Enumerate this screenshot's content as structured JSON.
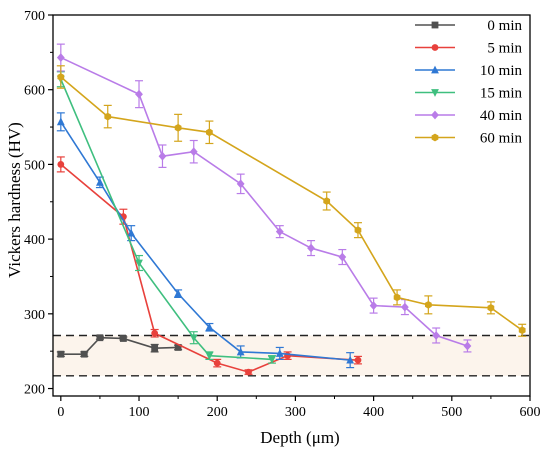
{
  "chart_data": {
    "type": "line",
    "xlabel": "Depth (μm)",
    "ylabel": "Vickers hardness (HV)",
    "xlim": [
      -10,
      600
    ],
    "ylim": [
      190,
      700
    ],
    "xticks": [
      0,
      100,
      200,
      300,
      400,
      500,
      600
    ],
    "yticks": [
      200,
      300,
      400,
      500,
      600,
      700
    ],
    "grid": false,
    "legend_position": "top-right",
    "band": {
      "y_low": 217,
      "y_high": 271,
      "color": "#fcf4ec"
    },
    "series": [
      {
        "name": "0 min",
        "color": "#505050",
        "marker": "square",
        "x": [
          0,
          30,
          50,
          80,
          120,
          150
        ],
        "y": [
          246,
          246,
          268,
          267,
          254,
          255
        ],
        "err": [
          3,
          3,
          2,
          2,
          5,
          3
        ]
      },
      {
        "name": "5 min",
        "color": "#e8413c",
        "marker": "circle",
        "x": [
          0,
          80,
          120,
          200,
          240,
          290,
          380
        ],
        "y": [
          500,
          430,
          274,
          234,
          222,
          244,
          238
        ],
        "err": [
          10,
          10,
          5,
          5,
          3,
          5,
          5
        ]
      },
      {
        "name": "10 min",
        "color": "#2f78d4",
        "marker": "triangle-up",
        "x": [
          0,
          50,
          90,
          150,
          190,
          230,
          280,
          370
        ],
        "y": [
          557,
          476,
          408,
          327,
          282,
          249,
          247,
          238
        ],
        "err": [
          12,
          7,
          10,
          5,
          5,
          8,
          8,
          10
        ]
      },
      {
        "name": "15 min",
        "color": "#3fbf7f",
        "marker": "triangle-down",
        "x": [
          0,
          100,
          170,
          190,
          270
        ],
        "y": [
          614,
          368,
          268,
          244,
          239
        ],
        "err": [
          10,
          10,
          8,
          5,
          5
        ]
      },
      {
        "name": "40 min",
        "color": "#b97ce8",
        "marker": "diamond",
        "x": [
          0,
          100,
          130,
          170,
          230,
          280,
          320,
          360,
          400,
          440,
          480,
          520
        ],
        "y": [
          643,
          594,
          511,
          517,
          474,
          410,
          388,
          376,
          311,
          309,
          271,
          257
        ],
        "err": [
          18,
          18,
          15,
          15,
          13,
          8,
          10,
          10,
          10,
          10,
          10,
          8
        ]
      },
      {
        "name": "60 min",
        "color": "#d4a51c",
        "marker": "hexagon",
        "x": [
          0,
          60,
          150,
          190,
          340,
          380,
          430,
          470,
          550,
          590
        ],
        "y": [
          617,
          564,
          549,
          543,
          451,
          412,
          322,
          312,
          308,
          278
        ],
        "err": [
          15,
          15,
          18,
          15,
          12,
          10,
          10,
          12,
          8,
          8
        ]
      }
    ]
  }
}
